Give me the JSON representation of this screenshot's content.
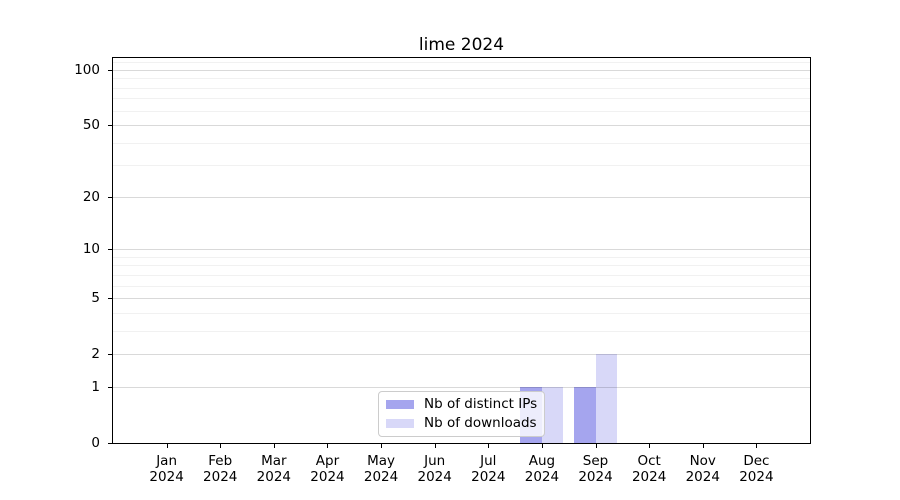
{
  "title": "lime 2024",
  "chart_data": {
    "type": "bar",
    "categories": [
      "Jan",
      "Feb",
      "Mar",
      "Apr",
      "May",
      "Jun",
      "Jul",
      "Aug",
      "Sep",
      "Oct",
      "Nov",
      "Dec"
    ],
    "year": "2024",
    "series": [
      {
        "name": "Nb of distinct IPs",
        "color": "#a5a5ee",
        "values": [
          0,
          0,
          0,
          0,
          0,
          0,
          0,
          1,
          1,
          0,
          0,
          0
        ]
      },
      {
        "name": "Nb of downloads",
        "color": "#d8d8f8",
        "values": [
          0,
          0,
          0,
          0,
          0,
          0,
          0,
          1,
          2,
          0,
          0,
          0
        ]
      }
    ],
    "title": "lime 2024",
    "xlabel": "",
    "ylabel": "",
    "yscale": "log1p",
    "y_major_ticks": [
      0,
      1,
      2,
      5,
      10,
      20,
      50,
      100
    ],
    "y_minor_ticks": [
      3,
      4,
      6,
      7,
      8,
      9,
      30,
      40,
      60,
      70,
      80,
      90,
      110
    ],
    "ylim": [
      0,
      116
    ],
    "grid": true,
    "legend_position": "lower center"
  }
}
